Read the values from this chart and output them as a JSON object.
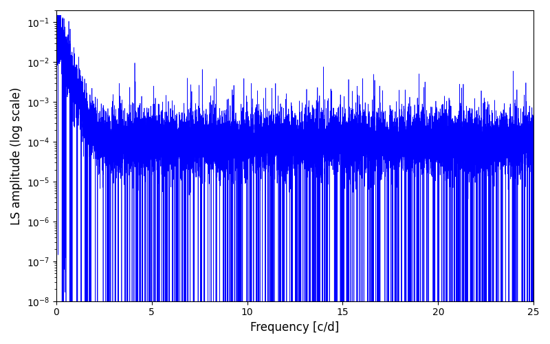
{
  "title": "",
  "xlabel": "Frequency [c/d]",
  "ylabel": "LS amplitude (log scale)",
  "xlim": [
    0,
    25
  ],
  "ylim": [
    1e-08,
    0.2
  ],
  "line_color": "#0000ff",
  "line_width": 0.5,
  "figsize": [
    8.0,
    5.0
  ],
  "dpi": 100,
  "freq_max": 25.0,
  "n_points": 12000,
  "seed": 7
}
